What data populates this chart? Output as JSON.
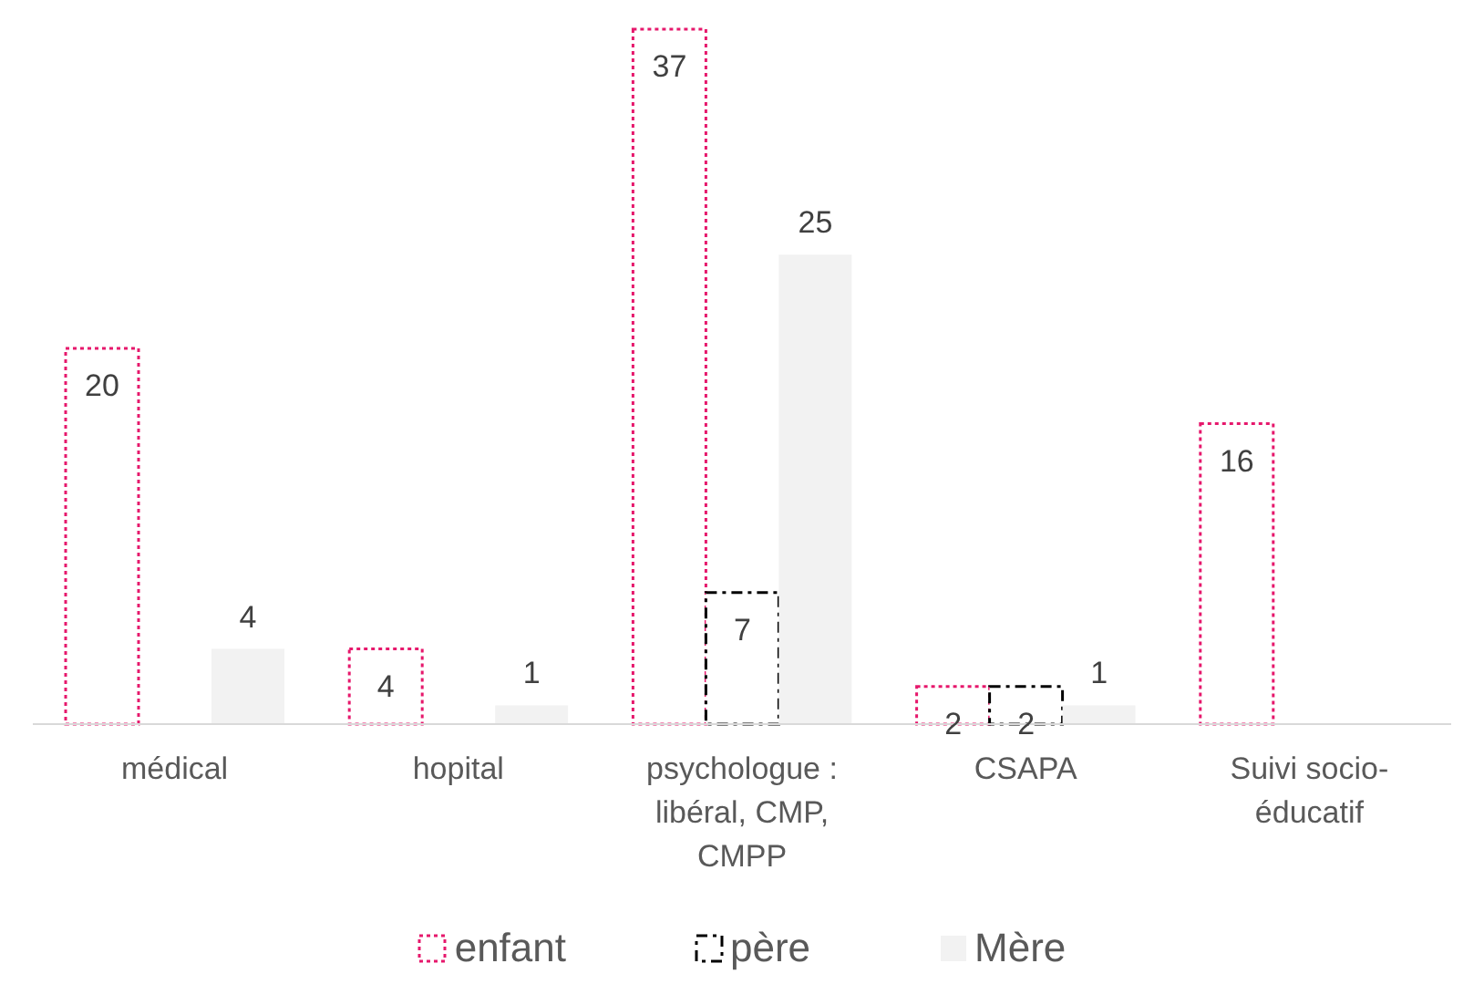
{
  "chart_data": {
    "type": "bar",
    "categories": [
      "médical",
      "hopital",
      "psychologue : libéral, CMP, CMPP",
      "CSAPA",
      "Suivi socio-éducatif"
    ],
    "series": [
      {
        "name": "enfant",
        "color": "#e6186c",
        "line_style": "dotted",
        "values": [
          20,
          4,
          37,
          2,
          16
        ]
      },
      {
        "name": "père",
        "color": "#000000",
        "line_style": "dashed",
        "values": [
          null,
          null,
          7,
          2,
          null
        ]
      },
      {
        "name": "Mère",
        "color": "#f2f2f2",
        "values": [
          4,
          1,
          25,
          1,
          null
        ]
      }
    ],
    "data_labels": true,
    "tick_labels": "x",
    "grid": false,
    "legend": "bottom"
  }
}
